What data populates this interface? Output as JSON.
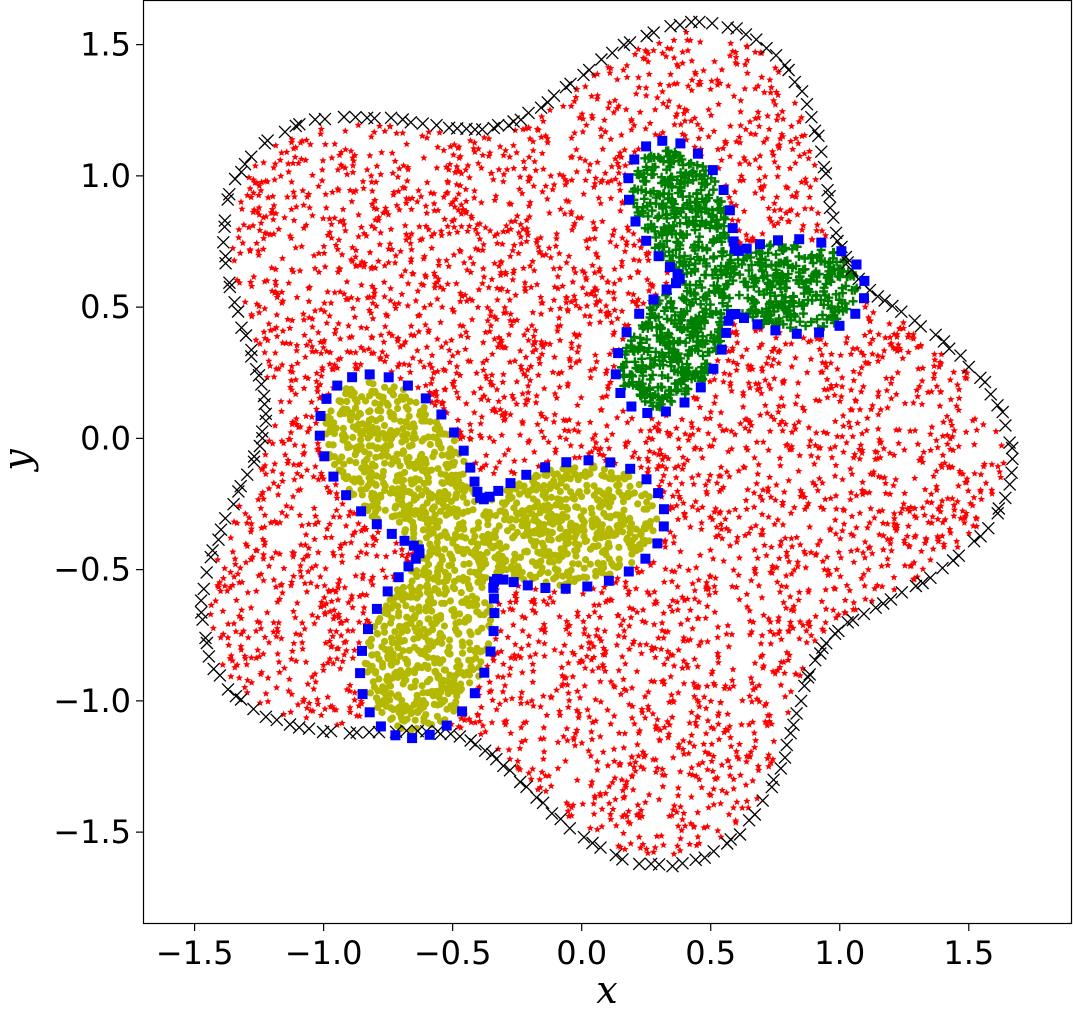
{
  "chart_data": {
    "type": "scatter",
    "title": "",
    "xlabel": "x",
    "ylabel": "y",
    "xlim": [
      -1.7,
      1.9
    ],
    "ylim": [
      -1.85,
      1.67
    ],
    "grid": false,
    "legend": "none",
    "x_ticks": [
      -1.5,
      -1.0,
      -0.5,
      0.0,
      0.5,
      1.0,
      1.5
    ],
    "x_tick_labels": [
      "−1.5",
      "−1.0",
      "−0.5",
      "0.0",
      "0.5",
      "1.0",
      "1.5"
    ],
    "y_ticks": [
      1.5,
      1.0,
      0.5,
      0.0,
      -0.5,
      -1.0,
      -1.5
    ],
    "y_tick_labels": [
      "1.5",
      "1.0",
      "0.5",
      "0.0",
      "−0.5",
      "−1.0",
      "−1.5"
    ],
    "series": [
      {
        "marker": "star",
        "color": "#ff0000",
        "region": "five-lobed domain, r = 1.45 + 0.22·cos(5θ + 0.3)",
        "approx_count": 3600
      },
      {
        "marker": "x",
        "color": "#000000",
        "region": "outer boundary of five-lobed domain",
        "approx_count": 240
      },
      {
        "marker": "circle",
        "color": "#b5b800",
        "region": "three-armed blob centered at (-0.45, -0.40)",
        "approx_count": 1500
      },
      {
        "marker": "square",
        "color": "#0000ff",
        "region": "boundaries of the two three-armed blobs",
        "approx_count": 130
      },
      {
        "marker": "plus",
        "color": "#008000",
        "region": "three-armed blob centered at (0.52, 0.60)",
        "approx_count": 900
      }
    ],
    "shapes": {
      "outer": {
        "center": [
          0.0,
          0.0
        ],
        "base_radius": 1.45,
        "lobe_amplitude": 0.22,
        "lobes": 5,
        "phase": 0.3
      },
      "yellow_blob": {
        "center": [
          -0.45,
          -0.4
        ],
        "base_radius": 0.48,
        "lobe_amplitude": 0.3,
        "lobes": 3,
        "phase": -0.5
      },
      "green_blob": {
        "center": [
          0.52,
          0.6
        ],
        "base_radius": 0.36,
        "lobe_amplitude": 0.22,
        "lobes": 3,
        "phase": 0.2
      }
    }
  }
}
